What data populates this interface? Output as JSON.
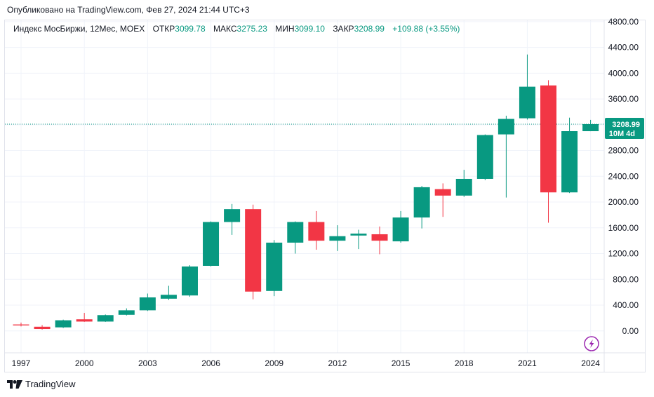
{
  "published": "Опубликовано на TradingView.com, Фев 27, 2024 21:44 UTC+3",
  "legend": {
    "symbol": "Индекс МосБиржи, 12Мес, MOEX",
    "open_label": "ОТКР",
    "open_value": "3099.78",
    "high_label": "МАКС",
    "high_value": "3275.23",
    "low_label": "МИН",
    "low_value": "3099.10",
    "close_label": "ЗАКР",
    "close_value": "3208.99",
    "change": "+109.88 (+3.55%)"
  },
  "last_price": {
    "value": "3208.99",
    "countdown": "10M 4d"
  },
  "brand": "TradingView",
  "colors": {
    "up": "#089981",
    "down": "#f23645",
    "grid": "#f0f3fa",
    "last_line": "#089981"
  },
  "chart_data": {
    "type": "candlestick",
    "title": "Индекс МосБиржи, 12Мес, MOEX",
    "ylim": [
      -340,
      4820
    ],
    "yticks": [
      0,
      400,
      800,
      1200,
      1600,
      2000,
      2400,
      2800,
      3200,
      3600,
      4000,
      4400,
      4800
    ],
    "ytick_labels": [
      "0.00",
      "400.00",
      "800.00",
      "1200.00",
      "1600.00",
      "2000.00",
      "2400.00",
      "2800.00",
      "3200.00",
      "3600.00",
      "4000.00",
      "4400.00",
      "4800.00"
    ],
    "xticks": [
      1997,
      2000,
      2003,
      2006,
      2009,
      2012,
      2015,
      2018,
      2021,
      2024
    ],
    "grid": true,
    "candles": [
      {
        "year": 1997,
        "open": 100,
        "high": 130,
        "low": 70,
        "close": 85
      },
      {
        "year": 1998,
        "open": 65,
        "high": 90,
        "low": 20,
        "close": 30
      },
      {
        "year": 1999,
        "open": 55,
        "high": 175,
        "low": 45,
        "close": 165
      },
      {
        "year": 2000,
        "open": 180,
        "high": 280,
        "low": 140,
        "close": 145
      },
      {
        "year": 2001,
        "open": 145,
        "high": 255,
        "low": 140,
        "close": 245
      },
      {
        "year": 2002,
        "open": 250,
        "high": 350,
        "low": 240,
        "close": 320
      },
      {
        "year": 2003,
        "open": 320,
        "high": 580,
        "low": 310,
        "close": 520
      },
      {
        "year": 2004,
        "open": 500,
        "high": 700,
        "low": 480,
        "close": 560
      },
      {
        "year": 2005,
        "open": 550,
        "high": 1020,
        "low": 530,
        "close": 1000
      },
      {
        "year": 2006,
        "open": 1010,
        "high": 1700,
        "low": 1000,
        "close": 1690
      },
      {
        "year": 2007,
        "open": 1690,
        "high": 1970,
        "low": 1490,
        "close": 1890
      },
      {
        "year": 2008,
        "open": 1890,
        "high": 1960,
        "low": 490,
        "close": 610
      },
      {
        "year": 2009,
        "open": 620,
        "high": 1410,
        "low": 540,
        "close": 1370
      },
      {
        "year": 2010,
        "open": 1370,
        "high": 1700,
        "low": 1200,
        "close": 1690
      },
      {
        "year": 2011,
        "open": 1690,
        "high": 1860,
        "low": 1260,
        "close": 1400
      },
      {
        "year": 2012,
        "open": 1400,
        "high": 1640,
        "low": 1240,
        "close": 1470
      },
      {
        "year": 2013,
        "open": 1480,
        "high": 1570,
        "low": 1270,
        "close": 1510
      },
      {
        "year": 2014,
        "open": 1500,
        "high": 1620,
        "low": 1190,
        "close": 1400
      },
      {
        "year": 2015,
        "open": 1390,
        "high": 1860,
        "low": 1370,
        "close": 1760
      },
      {
        "year": 2016,
        "open": 1760,
        "high": 2250,
        "low": 1590,
        "close": 2230
      },
      {
        "year": 2017,
        "open": 2200,
        "high": 2290,
        "low": 1770,
        "close": 2100
      },
      {
        "year": 2018,
        "open": 2100,
        "high": 2500,
        "low": 2080,
        "close": 2360
      },
      {
        "year": 2019,
        "open": 2360,
        "high": 3050,
        "low": 2340,
        "close": 3040
      },
      {
        "year": 2020,
        "open": 3050,
        "high": 3340,
        "low": 2070,
        "close": 3290
      },
      {
        "year": 2021,
        "open": 3300,
        "high": 4290,
        "low": 3280,
        "close": 3790
      },
      {
        "year": 2022,
        "open": 3810,
        "high": 3890,
        "low": 1680,
        "close": 2150
      },
      {
        "year": 2023,
        "open": 2150,
        "high": 3310,
        "low": 2140,
        "close": 3100
      },
      {
        "year": 2024,
        "open": 3099.78,
        "high": 3275.23,
        "low": 3099.1,
        "close": 3208.99
      }
    ]
  },
  "icons": {
    "lightning": "lightning-icon",
    "logo": "tradingview-logo-icon"
  }
}
